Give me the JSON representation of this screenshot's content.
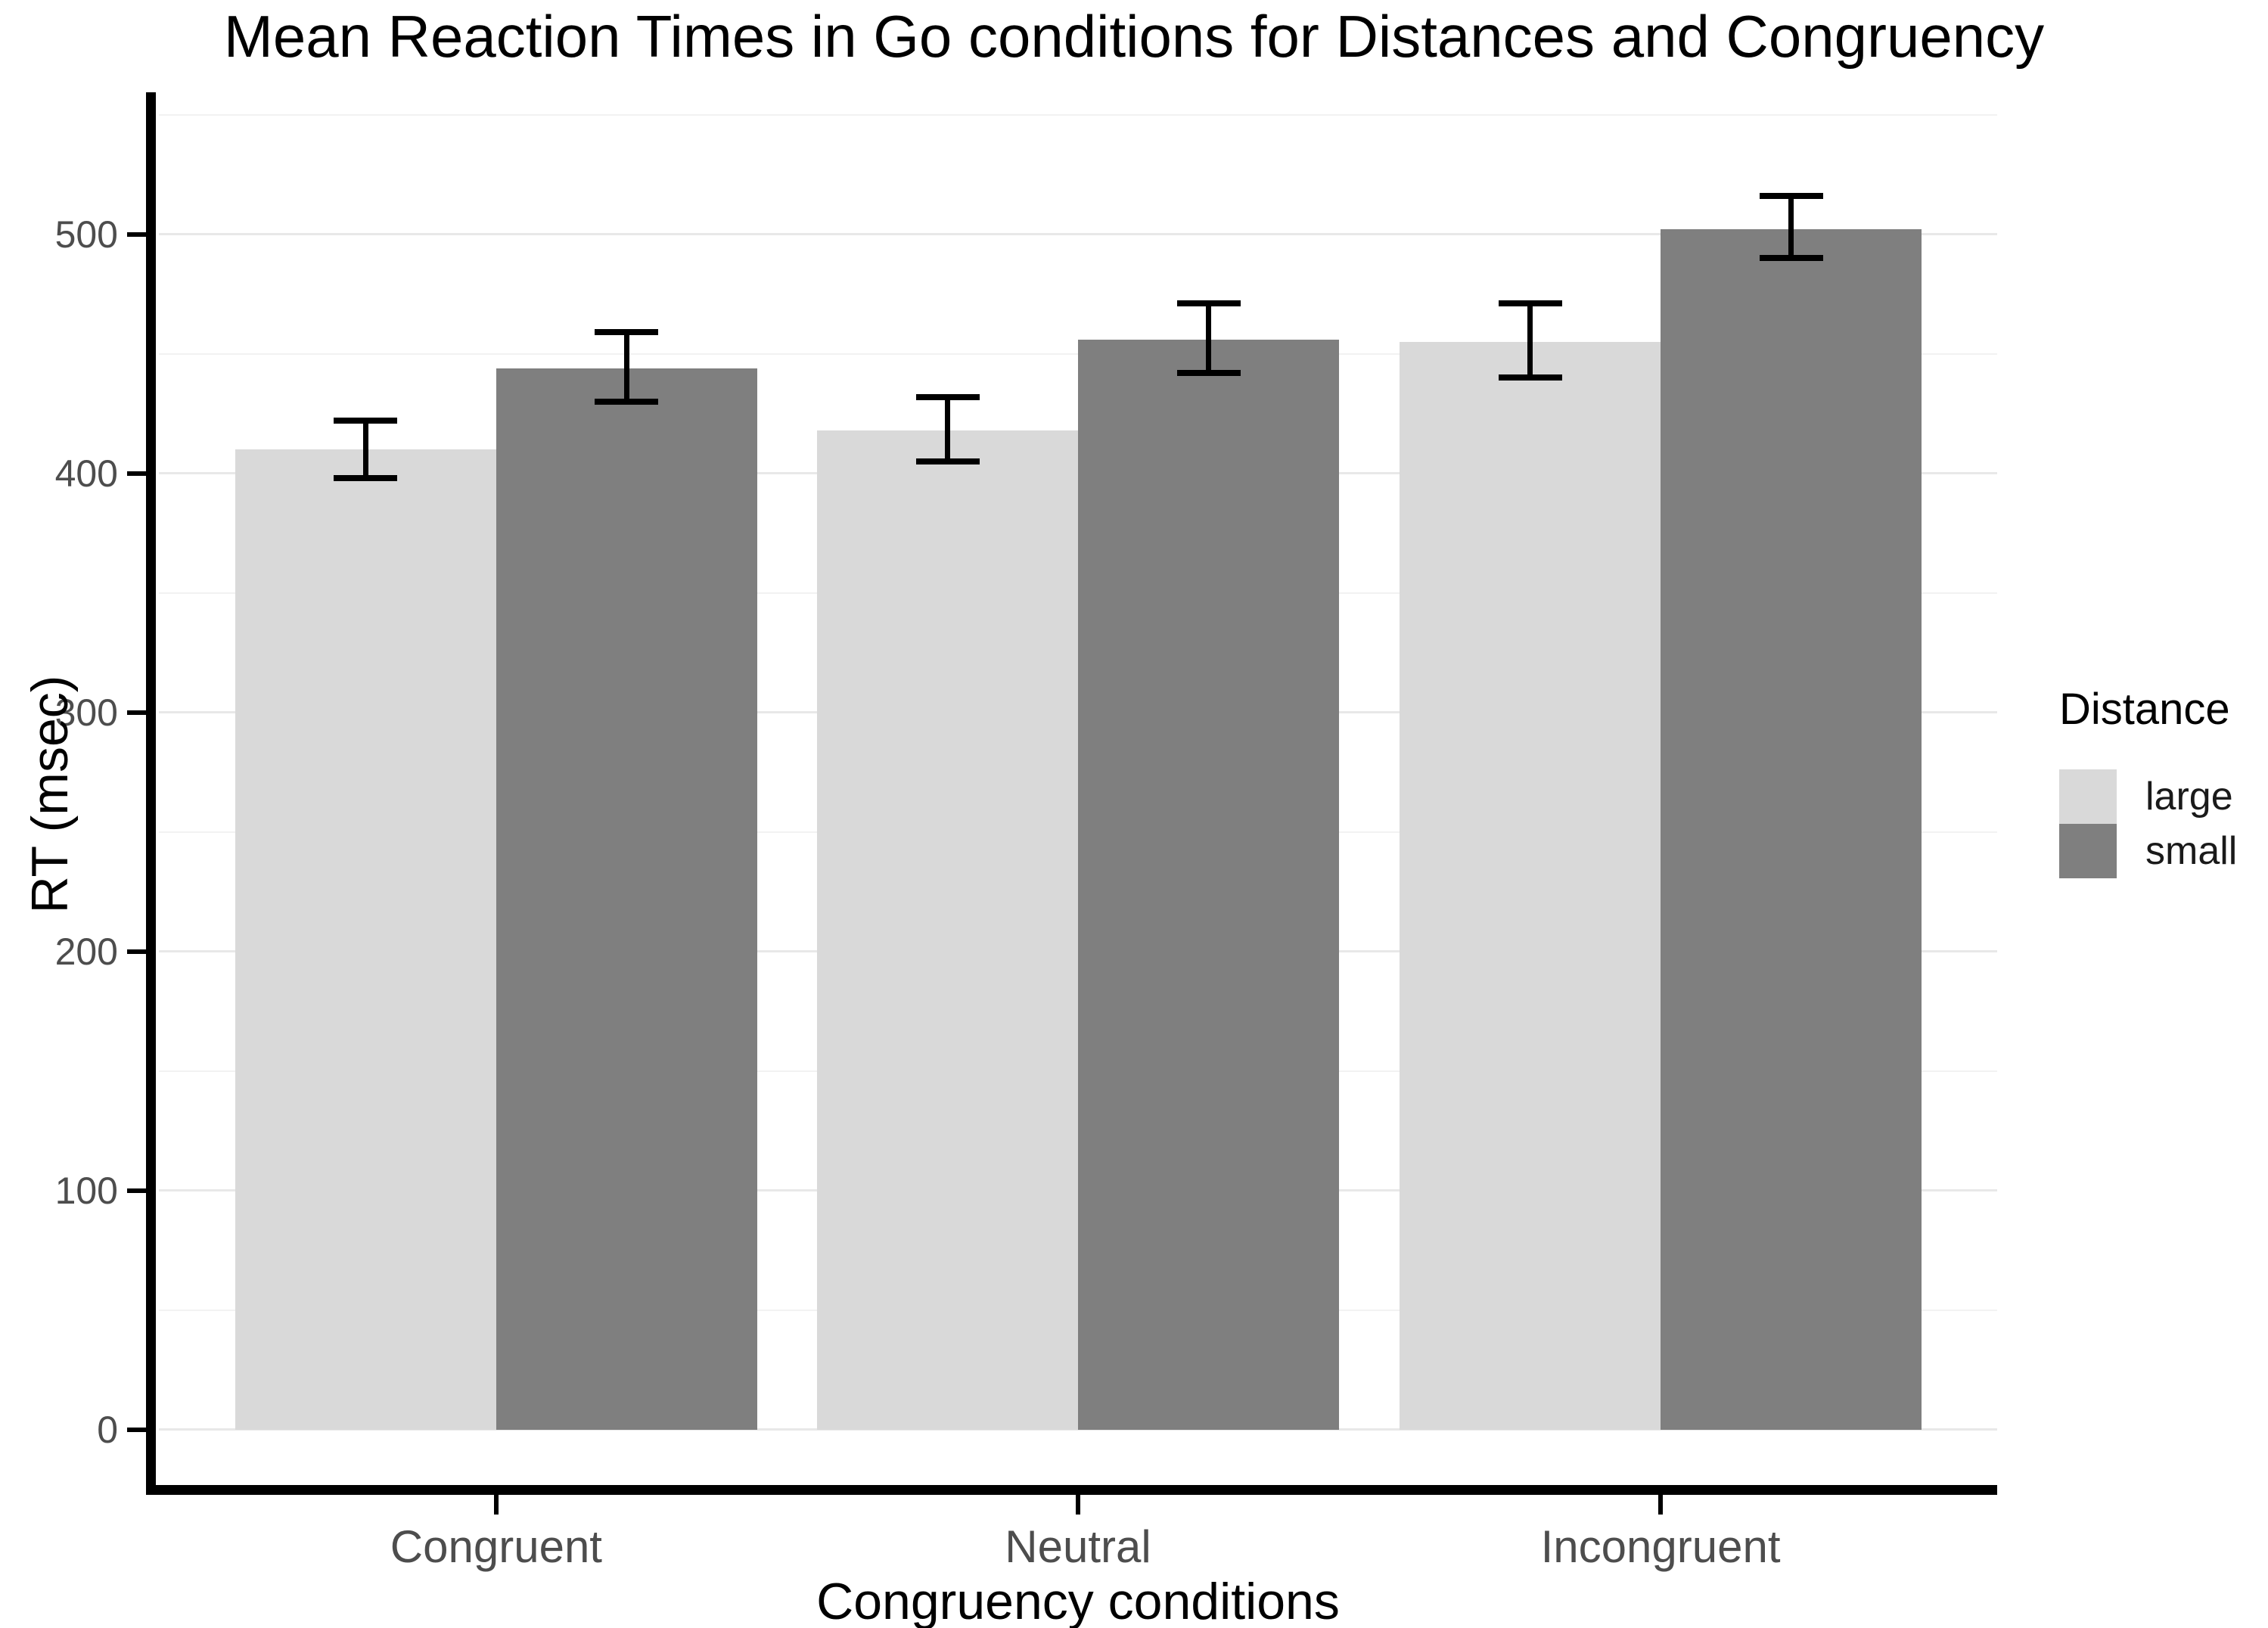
{
  "chart_data": {
    "type": "bar",
    "title": "Mean Reaction Times in Go conditions for Distances and Congruency",
    "xlabel": "Congruency conditions",
    "ylabel": "RT (msec)",
    "categories": [
      "Congruent",
      "Neutral",
      "Incongruent"
    ],
    "series": [
      {
        "name": "large",
        "color": "#d9d9d9",
        "values": [
          410,
          418,
          455
        ],
        "ci_low": [
          398,
          405,
          440
        ],
        "ci_high": [
          422,
          432,
          471
        ]
      },
      {
        "name": "small",
        "color": "#7f7f7f",
        "values": [
          444,
          456,
          502
        ],
        "ci_low": [
          430,
          442,
          490
        ],
        "ci_high": [
          459,
          471,
          516
        ]
      }
    ],
    "error_bars": true,
    "y_ticks": [
      0,
      100,
      200,
      300,
      400,
      500
    ],
    "y_minor_ticks": [
      50,
      150,
      250,
      350,
      450,
      550
    ],
    "ylim": [
      0,
      550
    ],
    "grid": "horizontal, major and minor, light gray, behind bars",
    "legend": {
      "title": "Distance",
      "position": "right",
      "entries": [
        "large",
        "small"
      ]
    },
    "colors": {
      "background": "#ffffff",
      "axis_line": "#000000",
      "tick_label": "#4d4d4d",
      "grid_major": "#e8e8e8",
      "grid_minor": "#f2f2f2",
      "error_bar": "#000000"
    }
  }
}
